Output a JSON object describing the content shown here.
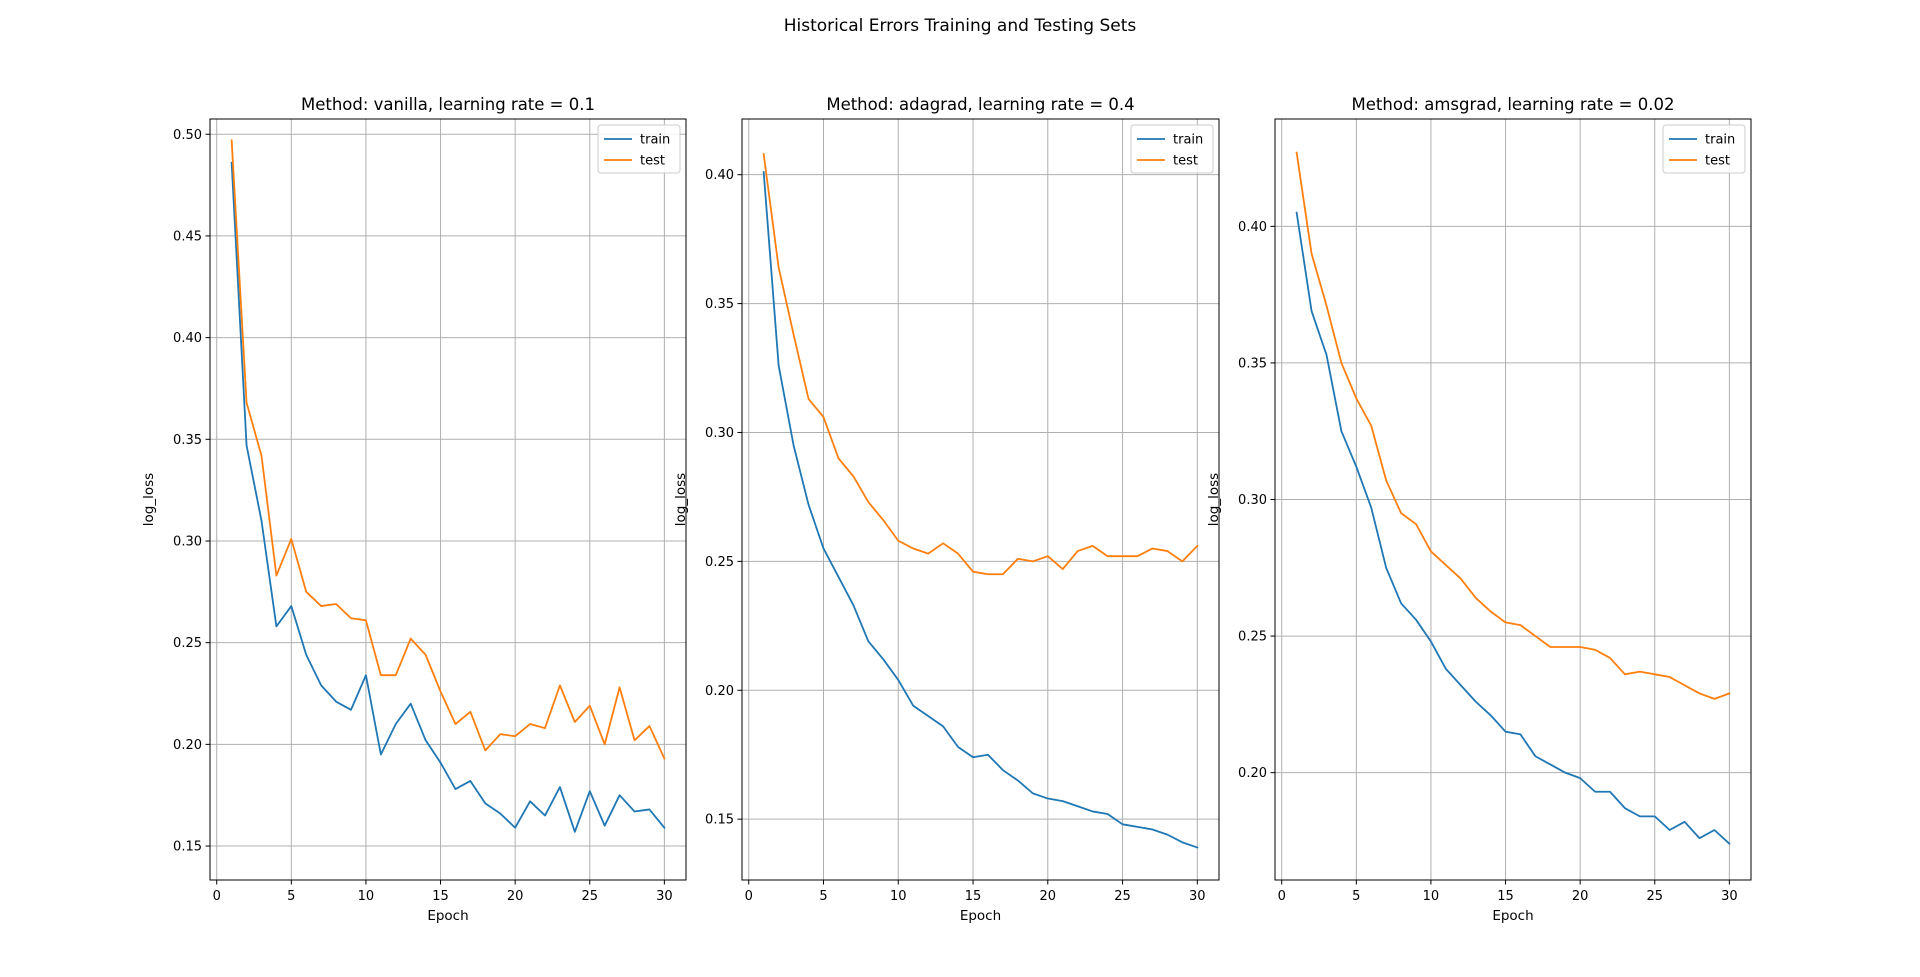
{
  "figure": {
    "suptitle": "Historical Errors Training and Testing Sets"
  },
  "colors": {
    "train": "#1f77b4",
    "test": "#ff7f0e",
    "grid": "#b0b0b0",
    "axis": "#000000"
  },
  "chart_data": [
    {
      "type": "line",
      "title": "Method: vanilla, learning rate = 0.1",
      "xlabel": "Epoch",
      "ylabel": "log_loss",
      "xlim": [
        -0.45,
        31.45
      ],
      "ylim": [
        0.1333,
        0.5075
      ],
      "xticks": [
        0,
        5,
        10,
        15,
        20,
        25,
        30
      ],
      "yticks": [
        0.15,
        0.2,
        0.25,
        0.3,
        0.35,
        0.4,
        0.45,
        0.5
      ],
      "grid": true,
      "legend": "top-right",
      "x": [
        1,
        2,
        3,
        4,
        5,
        6,
        7,
        8,
        9,
        10,
        11,
        12,
        13,
        14,
        15,
        16,
        17,
        18,
        19,
        20,
        21,
        22,
        23,
        24,
        25,
        26,
        27,
        28,
        29,
        30
      ],
      "series": [
        {
          "name": "train",
          "values": [
            0.486,
            0.347,
            0.31,
            0.258,
            0.268,
            0.244,
            0.229,
            0.221,
            0.217,
            0.234,
            0.195,
            0.21,
            0.22,
            0.202,
            0.191,
            0.178,
            0.182,
            0.171,
            0.166,
            0.159,
            0.172,
            0.165,
            0.179,
            0.157,
            0.177,
            0.16,
            0.175,
            0.167,
            0.168,
            0.159
          ]
        },
        {
          "name": "test",
          "values": [
            0.497,
            0.368,
            0.342,
            0.283,
            0.301,
            0.275,
            0.268,
            0.269,
            0.262,
            0.261,
            0.234,
            0.234,
            0.252,
            0.244,
            0.226,
            0.21,
            0.216,
            0.197,
            0.205,
            0.204,
            0.21,
            0.208,
            0.229,
            0.211,
            0.219,
            0.2,
            0.228,
            0.202,
            0.209,
            0.193
          ]
        }
      ]
    },
    {
      "type": "line",
      "title": "Method: adagrad, learning rate = 0.4",
      "xlabel": "Epoch",
      "ylabel": "log_loss",
      "xlim": [
        -0.45,
        31.45
      ],
      "ylim": [
        0.1264,
        0.4216
      ],
      "xticks": [
        0,
        5,
        10,
        15,
        20,
        25,
        30
      ],
      "yticks": [
        0.15,
        0.2,
        0.25,
        0.3,
        0.35,
        0.4
      ],
      "grid": true,
      "legend": "top-right",
      "x": [
        1,
        2,
        3,
        4,
        5,
        6,
        7,
        8,
        9,
        10,
        11,
        12,
        13,
        14,
        15,
        16,
        17,
        18,
        19,
        20,
        21,
        22,
        23,
        24,
        25,
        26,
        27,
        28,
        29,
        30
      ],
      "series": [
        {
          "name": "train",
          "values": [
            0.401,
            0.326,
            0.295,
            0.272,
            0.255,
            0.244,
            0.233,
            0.219,
            0.212,
            0.204,
            0.194,
            0.19,
            0.186,
            0.178,
            0.174,
            0.175,
            0.169,
            0.165,
            0.16,
            0.158,
            0.157,
            0.155,
            0.153,
            0.152,
            0.148,
            0.147,
            0.146,
            0.144,
            0.141,
            0.139
          ]
        },
        {
          "name": "test",
          "values": [
            0.408,
            0.364,
            0.338,
            0.313,
            0.306,
            0.29,
            0.283,
            0.273,
            0.266,
            0.258,
            0.255,
            0.253,
            0.257,
            0.253,
            0.246,
            0.245,
            0.245,
            0.251,
            0.25,
            0.252,
            0.247,
            0.254,
            0.256,
            0.252,
            0.252,
            0.252,
            0.255,
            0.254,
            0.25,
            0.256
          ]
        }
      ]
    },
    {
      "type": "line",
      "title": "Method: amsgrad, learning rate = 0.02",
      "xlabel": "Epoch",
      "ylabel": "log_loss",
      "xlim": [
        -0.45,
        31.45
      ],
      "ylim": [
        0.1607,
        0.4393
      ],
      "xticks": [
        0,
        5,
        10,
        15,
        20,
        25,
        30
      ],
      "yticks": [
        0.2,
        0.25,
        0.3,
        0.35,
        0.4
      ],
      "grid": true,
      "legend": "top-right",
      "x": [
        1,
        2,
        3,
        4,
        5,
        6,
        7,
        8,
        9,
        10,
        11,
        12,
        13,
        14,
        15,
        16,
        17,
        18,
        19,
        20,
        21,
        22,
        23,
        24,
        25,
        26,
        27,
        28,
        29,
        30
      ],
      "series": [
        {
          "name": "train",
          "values": [
            0.405,
            0.369,
            0.353,
            0.325,
            0.312,
            0.297,
            0.275,
            0.262,
            0.256,
            0.248,
            0.238,
            0.232,
            0.226,
            0.221,
            0.215,
            0.214,
            0.206,
            0.203,
            0.2,
            0.198,
            0.193,
            0.193,
            0.187,
            0.184,
            0.184,
            0.179,
            0.182,
            0.176,
            0.179,
            0.174
          ]
        },
        {
          "name": "test",
          "values": [
            0.427,
            0.39,
            0.371,
            0.35,
            0.337,
            0.327,
            0.307,
            0.295,
            0.291,
            0.281,
            0.276,
            0.271,
            0.264,
            0.259,
            0.255,
            0.254,
            0.25,
            0.246,
            0.246,
            0.246,
            0.245,
            0.242,
            0.236,
            0.237,
            0.236,
            0.235,
            0.232,
            0.229,
            0.227,
            0.229
          ]
        }
      ]
    }
  ]
}
